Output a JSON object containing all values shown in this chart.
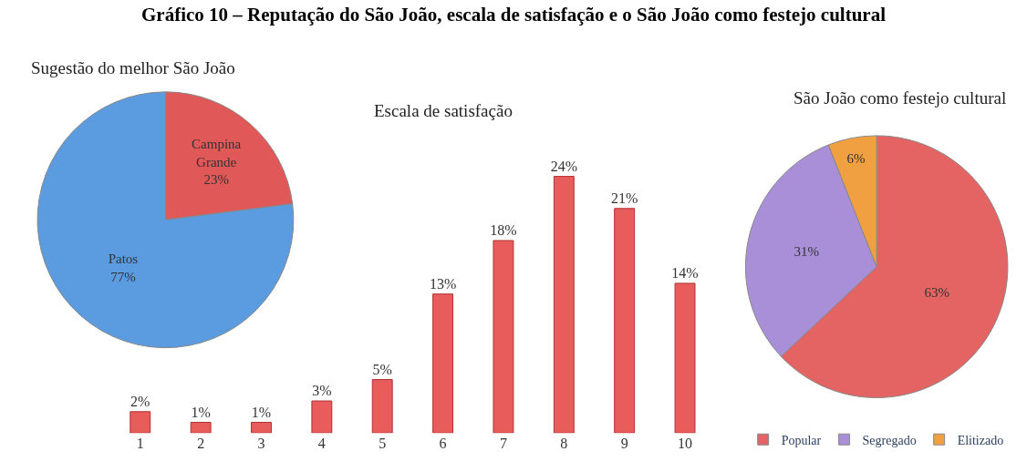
{
  "chart_data": [
    {
      "type": "pie",
      "title": "Sugestão do melhor São João",
      "categories": [
        "Campina Grande",
        "Patos"
      ],
      "values": [
        23,
        77
      ],
      "colors": [
        "#e05858",
        "#5b9be0"
      ],
      "value_labels": [
        "23%",
        "77%"
      ],
      "legend": false,
      "annotations": [
        "Gráfico 10 – Reputação do São João, escala de satisfação e o São João como festejo cultural"
      ]
    },
    {
      "type": "bar",
      "title": "Escala de satisfação",
      "categories": [
        "1",
        "2",
        "3",
        "4",
        "5",
        "6",
        "7",
        "8",
        "9",
        "10"
      ],
      "values": [
        2,
        1,
        1,
        3,
        5,
        13,
        18,
        24,
        21,
        14
      ],
      "color": "#e85c5c",
      "value_labels": [
        "2%",
        "1%",
        "1%",
        "3%",
        "5%",
        "13%",
        "18%",
        "24%",
        "21%",
        "14%"
      ]
    },
    {
      "type": "pie",
      "title": "São João como festejo cultural",
      "categories": [
        "Popular",
        "Segregado",
        "Elitizado"
      ],
      "values": [
        63,
        31,
        6
      ],
      "colors": [
        "#e46464",
        "#a98fd8",
        "#f0a040"
      ],
      "value_labels": [
        "63%",
        "31%",
        "6%"
      ],
      "legend": "bottom"
    }
  ]
}
